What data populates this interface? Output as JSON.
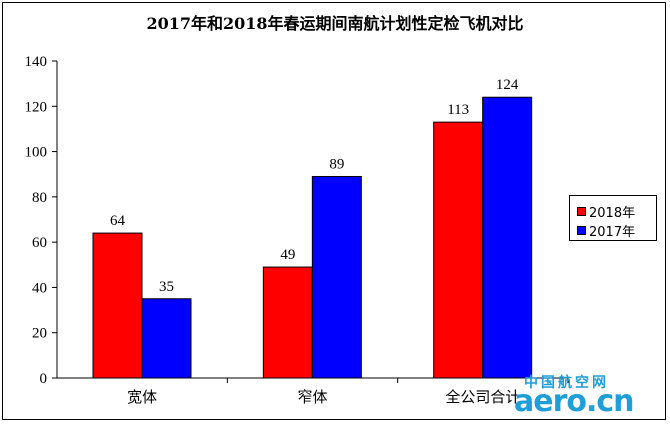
{
  "chart_data": {
    "type": "bar",
    "title": "2017年和2018年春运期间南航计划性定检飞机对比",
    "categories": [
      "宽体",
      "窄体",
      "全公司合计"
    ],
    "series": [
      {
        "name": "2018年",
        "color": "#ff0000",
        "values": [
          64,
          49,
          113
        ]
      },
      {
        "name": "2017年",
        "color": "#0000ff",
        "values": [
          35,
          89,
          124
        ]
      }
    ],
    "ylim": [
      0,
      140
    ],
    "yticks": [
      0,
      20,
      40,
      60,
      80,
      100,
      120,
      140
    ],
    "grid": false,
    "legend_position": "right"
  },
  "watermark": {
    "cn": "中国航空网",
    "en": "aero.cn"
  }
}
